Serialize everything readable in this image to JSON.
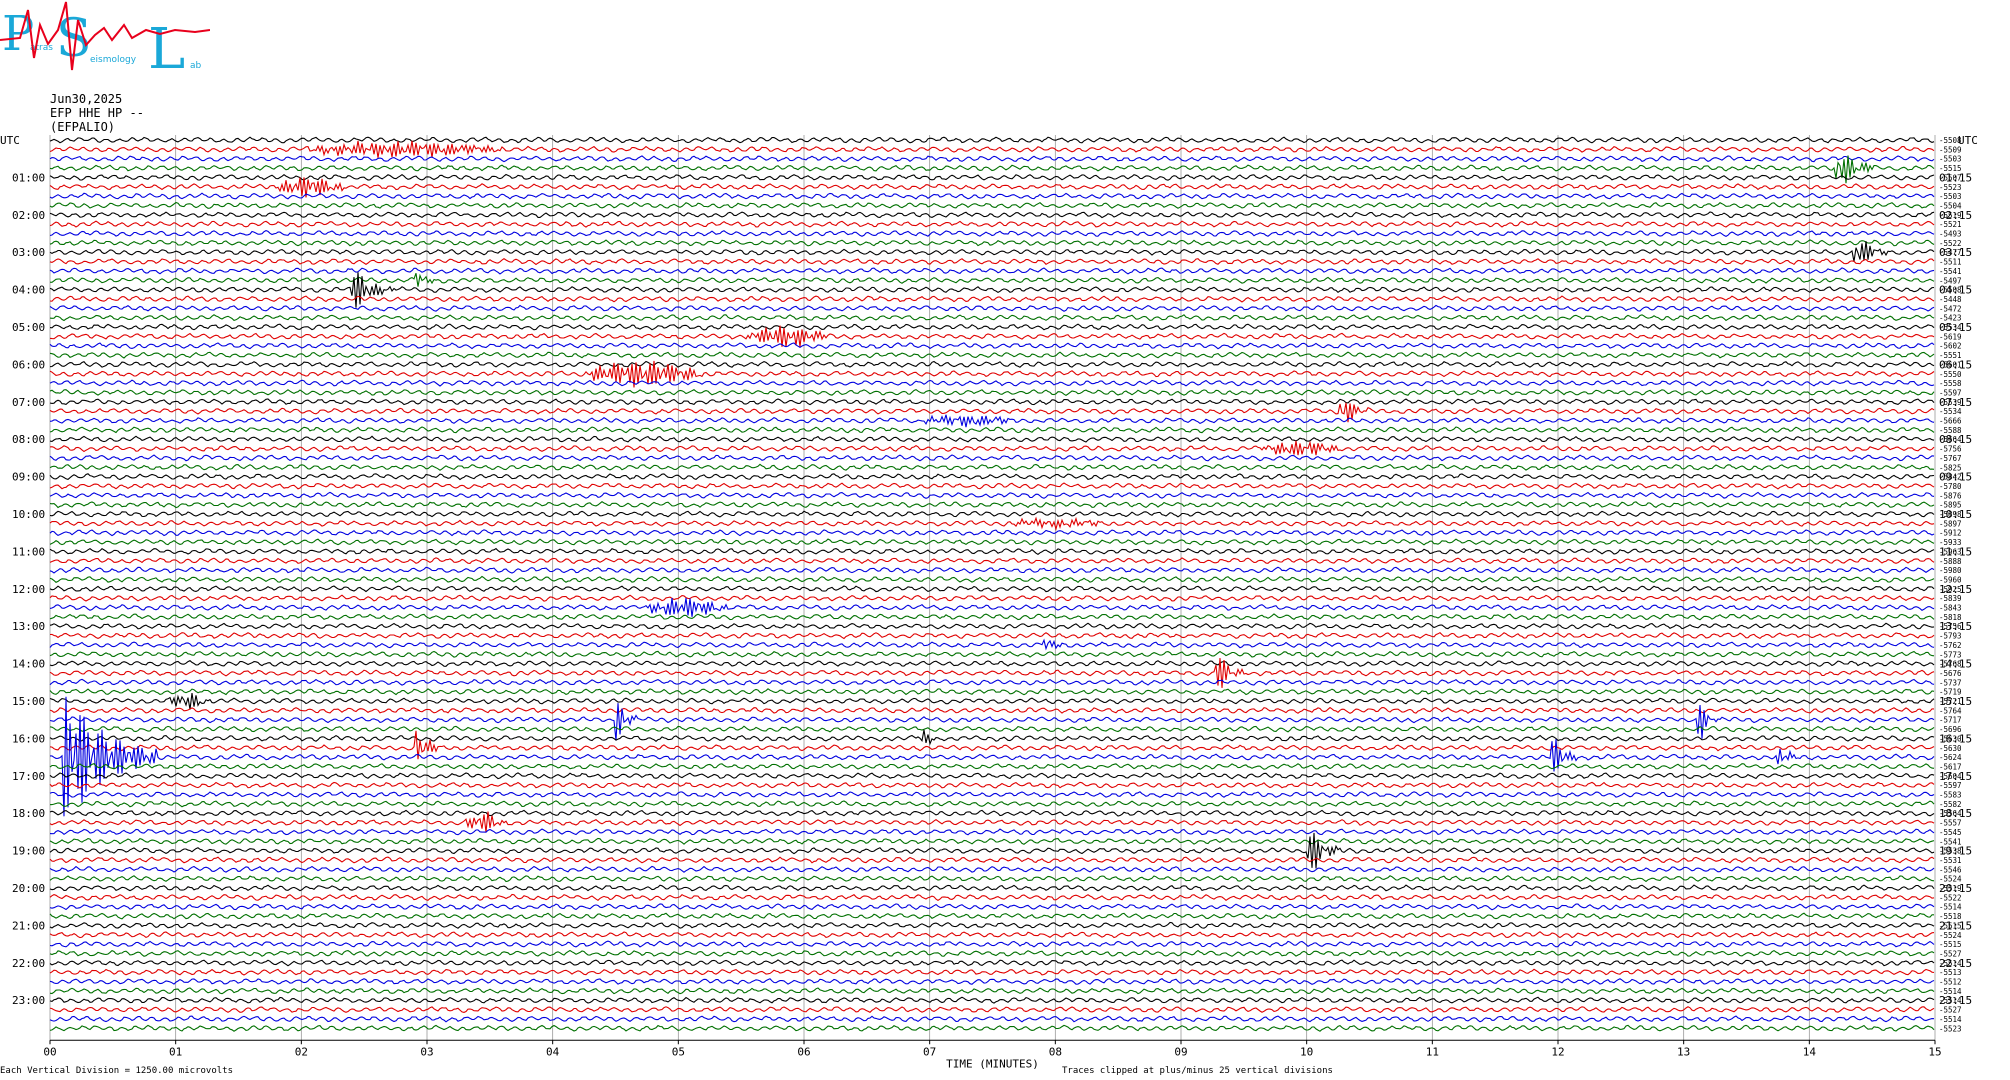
{
  "logo": {
    "letters": [
      "P",
      "S",
      "L"
    ],
    "words": [
      "atras",
      "eismology",
      "ab"
    ],
    "colors": {
      "letters": "#1aa8d8",
      "trace": "#e8001c"
    }
  },
  "header": {
    "date": "Jun30,2025",
    "channel": "EFP HHE HP --",
    "station": "(EFPALIO)"
  },
  "chart_data": {
    "type": "line",
    "subtype": "helicorder",
    "row_count": 96,
    "minutes_per_row": 15,
    "left_label_header": "UTC",
    "right_label_header": "UTC",
    "left_hour_labels": [
      "01:00",
      "02:00",
      "03:00",
      "04:00",
      "05:00",
      "06:00",
      "07:00",
      "08:00",
      "09:00",
      "10:00",
      "11:00",
      "12:00",
      "13:00",
      "14:00",
      "15:00",
      "16:00",
      "17:00",
      "18:00",
      "19:00",
      "20:00",
      "21:00",
      "22:00",
      "23:00"
    ],
    "right_hour_labels": [
      "01:15",
      "02:15",
      "03:15",
      "04:15",
      "05:15",
      "06:15",
      "07:15",
      "08:15",
      "09:15",
      "10:15",
      "11:15",
      "12:15",
      "13:15",
      "14:15",
      "15:15",
      "16:15",
      "17:15",
      "18:15",
      "19:15",
      "20:15",
      "21:15",
      "22:15",
      "23:15"
    ],
    "row_offsets": [
      -5508,
      -5509,
      -5503,
      -5515,
      -5507,
      -5523,
      -5503,
      -5504,
      -5519,
      -5521,
      -5493,
      -5522,
      -5477,
      -5511,
      -5541,
      -5497,
      -5508,
      -5448,
      -5472,
      -5423,
      -5534,
      -5619,
      -5602,
      -5551,
      -5601,
      -5550,
      -5558,
      -5597,
      -5539,
      -5534,
      -5666,
      -5588,
      -5664,
      -5756,
      -5767,
      -5825,
      -5842,
      -5780,
      -5876,
      -5895,
      -5898,
      -5897,
      -5912,
      -5933,
      -5963,
      -5888,
      -5980,
      -5960,
      -5925,
      -5839,
      -5843,
      -5818,
      -5756,
      -5793,
      -5762,
      -5773,
      -5768,
      -5676,
      -5737,
      -5719,
      -5721,
      -5764,
      -5717,
      -5696,
      -5630,
      -5630,
      -5624,
      -5617,
      -5604,
      -5597,
      -5583,
      -5582,
      -5564,
      -5557,
      -5545,
      -5541,
      -5538,
      -5531,
      -5546,
      -5524,
      -5519,
      -5522,
      -5514,
      -5518,
      -5515,
      -5524,
      -5515,
      -5527,
      -5514,
      -5513,
      -5512,
      -5514,
      -5514,
      -5527,
      -5514,
      -5523
    ],
    "x_tick_labels": [
      "00",
      "01",
      "02",
      "03",
      "04",
      "05",
      "06",
      "07",
      "08",
      "09",
      "10",
      "11",
      "12",
      "13",
      "14",
      "15"
    ],
    "xlabel": "TIME (MINUTES)",
    "xlim": [
      0,
      15
    ],
    "series_colors": [
      "#000000",
      "#e00000",
      "#0000e0",
      "#007000"
    ],
    "grid": true,
    "events": [
      {
        "row": 1,
        "minute": 2.1,
        "amp": 0.35,
        "dur": 1.4,
        "pulse": false
      },
      {
        "row": 5,
        "minute": 1.85,
        "amp": 0.5,
        "dur": 0.4,
        "pulse": false
      },
      {
        "row": 3,
        "minute": 14.25,
        "amp": 1.0,
        "dur": 0.2,
        "pulse": true
      },
      {
        "row": 12,
        "minute": 14.4,
        "amp": 0.8,
        "dur": 0.15,
        "pulse": true
      },
      {
        "row": 16,
        "minute": 2.45,
        "amp": 0.9,
        "dur": 0.2,
        "pulse": true
      },
      {
        "row": 15,
        "minute": 2.95,
        "amp": 0.4,
        "dur": 0.05,
        "pulse": true
      },
      {
        "row": 21,
        "minute": 5.6,
        "amp": 0.5,
        "dur": 0.5,
        "pulse": false
      },
      {
        "row": 25,
        "minute": 4.3,
        "amp": 0.6,
        "dur": 0.8,
        "pulse": false
      },
      {
        "row": 29,
        "minute": 10.3,
        "amp": 0.9,
        "dur": 0.1,
        "pulse": true
      },
      {
        "row": 30,
        "minute": 7.0,
        "amp": 0.25,
        "dur": 0.6,
        "pulse": false
      },
      {
        "row": 33,
        "minute": 9.7,
        "amp": 0.35,
        "dur": 0.5,
        "pulse": false
      },
      {
        "row": 41,
        "minute": 7.7,
        "amp": 0.2,
        "dur": 0.6,
        "pulse": false
      },
      {
        "row": 50,
        "minute": 4.8,
        "amp": 0.45,
        "dur": 0.5,
        "pulse": false
      },
      {
        "row": 54,
        "minute": 7.95,
        "amp": 0.4,
        "dur": 0.05,
        "pulse": true
      },
      {
        "row": 57,
        "minute": 9.3,
        "amp": 1.0,
        "dur": 0.12,
        "pulse": true
      },
      {
        "row": 60,
        "minute": 1.0,
        "amp": 0.4,
        "dur": 0.2,
        "pulse": false
      },
      {
        "row": 62,
        "minute": 4.55,
        "amp": 0.9,
        "dur": 0.05,
        "pulse": true
      },
      {
        "row": 62,
        "minute": 13.15,
        "amp": 0.8,
        "dur": 0.05,
        "pulse": true
      },
      {
        "row": 64,
        "minute": 6.95,
        "amp": 0.5,
        "dur": 0.05,
        "pulse": true
      },
      {
        "row": 65,
        "minute": 2.95,
        "amp": 0.8,
        "dur": 0.1,
        "pulse": true
      },
      {
        "row": 66,
        "minute": 0.15,
        "amp": 3.0,
        "dur": 0.6,
        "pulse": true
      },
      {
        "row": 66,
        "minute": 12.0,
        "amp": 0.8,
        "dur": 0.1,
        "pulse": true
      },
      {
        "row": 66,
        "minute": 13.8,
        "amp": 0.5,
        "dur": 0.05,
        "pulse": true
      },
      {
        "row": 73,
        "minute": 3.35,
        "amp": 0.5,
        "dur": 0.2,
        "pulse": false
      },
      {
        "row": 76,
        "minute": 10.05,
        "amp": 1.0,
        "dur": 0.15,
        "pulse": true
      }
    ]
  },
  "footer": {
    "left_note": "Each Vertical Division = 1250.00 microvolts",
    "center_note": "Traces clipped at plus/minus 25 vertical divisions"
  }
}
